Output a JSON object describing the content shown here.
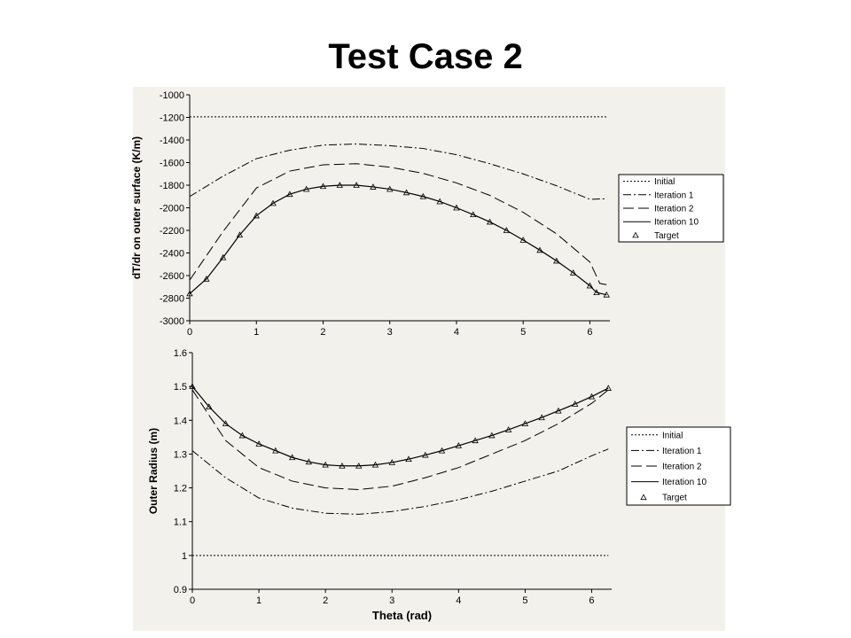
{
  "title": "Test Case 2",
  "chart_data": [
    {
      "type": "line",
      "xlabel": "",
      "ylabel": "dT/dr on outer surface (K/m)",
      "xlim": [
        0,
        6.3
      ],
      "ylim": [
        -3000,
        -1000
      ],
      "x_ticks": [
        "0",
        "1",
        "2",
        "3",
        "4",
        "5",
        "6"
      ],
      "y_ticks": [
        "-1000",
        "-1200",
        "-1400",
        "-1600",
        "-1800",
        "-2000",
        "-2200",
        "-2400",
        "-2600",
        "-2800",
        "-3000"
      ],
      "grid": false,
      "legend": "right",
      "series": [
        {
          "name": "Initial",
          "style": "dotted",
          "x": [
            0,
            6.25
          ],
          "y": [
            -1195,
            -1195
          ]
        },
        {
          "name": "Iteration 1",
          "style": "dashdot",
          "x": [
            0,
            0.5,
            1,
            1.5,
            2,
            2.5,
            3,
            3.5,
            4,
            4.5,
            5,
            5.5,
            6,
            6.25
          ],
          "y": [
            -1900,
            -1720,
            -1565,
            -1490,
            -1445,
            -1435,
            -1450,
            -1475,
            -1530,
            -1610,
            -1700,
            -1805,
            -1925,
            -1920
          ]
        },
        {
          "name": "Iteration 2",
          "style": "longdash",
          "x": [
            0,
            0.5,
            1,
            1.5,
            2,
            2.5,
            3,
            3.5,
            4,
            4.5,
            5,
            5.5,
            6,
            6.15,
            6.25
          ],
          "y": [
            -2640,
            -2210,
            -1825,
            -1675,
            -1620,
            -1610,
            -1640,
            -1695,
            -1780,
            -1890,
            -2040,
            -2230,
            -2480,
            -2670,
            -2680
          ]
        },
        {
          "name": "Iteration 10",
          "style": "solid",
          "x": [
            0,
            0.25,
            0.5,
            0.75,
            1,
            1.25,
            1.5,
            1.75,
            2,
            2.25,
            2.5,
            2.75,
            3,
            3.25,
            3.5,
            3.75,
            4,
            4.25,
            4.5,
            4.75,
            5,
            5.25,
            5.5,
            5.75,
            6,
            6.1,
            6.25
          ],
          "y": [
            -2760,
            -2630,
            -2440,
            -2240,
            -2070,
            -1960,
            -1880,
            -1835,
            -1810,
            -1800,
            -1800,
            -1815,
            -1835,
            -1865,
            -1900,
            -1945,
            -2000,
            -2060,
            -2125,
            -2200,
            -2285,
            -2375,
            -2470,
            -2575,
            -2690,
            -2750,
            -2770
          ]
        },
        {
          "name": "Target",
          "style": "triangles",
          "x": [
            0,
            0.25,
            0.5,
            0.75,
            1,
            1.25,
            1.5,
            1.75,
            2,
            2.25,
            2.5,
            2.75,
            3,
            3.25,
            3.5,
            3.75,
            4,
            4.25,
            4.5,
            4.75,
            5,
            5.25,
            5.5,
            5.75,
            6,
            6.1,
            6.25
          ],
          "y": [
            -2760,
            -2630,
            -2440,
            -2240,
            -2070,
            -1960,
            -1880,
            -1835,
            -1810,
            -1800,
            -1800,
            -1815,
            -1835,
            -1865,
            -1900,
            -1945,
            -2000,
            -2060,
            -2125,
            -2200,
            -2285,
            -2375,
            -2470,
            -2575,
            -2690,
            -2750,
            -2770
          ]
        }
      ]
    },
    {
      "type": "line",
      "xlabel": "Theta (rad)",
      "ylabel": "Outer Radius (m)",
      "xlim": [
        0,
        6.3
      ],
      "ylim": [
        0.9,
        1.6
      ],
      "x_ticks": [
        "0",
        "1",
        "2",
        "3",
        "4",
        "5",
        "6"
      ],
      "y_ticks": [
        "1.6",
        "1.5",
        "1.4",
        "1.3",
        "1.2",
        "1.1",
        "1",
        "0.9"
      ],
      "grid": false,
      "legend": "right",
      "series": [
        {
          "name": "Initial",
          "style": "dotted",
          "x": [
            0,
            6.25
          ],
          "y": [
            1.0,
            1.0
          ]
        },
        {
          "name": "Iteration 1",
          "style": "dashdot",
          "x": [
            0,
            0.5,
            1,
            1.5,
            2,
            2.5,
            3,
            3.5,
            4,
            4.5,
            5,
            5.5,
            6,
            6.25
          ],
          "y": [
            1.31,
            1.23,
            1.17,
            1.14,
            1.125,
            1.122,
            1.13,
            1.145,
            1.165,
            1.19,
            1.22,
            1.25,
            1.295,
            1.315
          ]
        },
        {
          "name": "Iteration 2",
          "style": "longdash",
          "x": [
            0,
            0.5,
            1,
            1.5,
            2,
            2.5,
            3,
            3.5,
            4,
            4.5,
            5,
            5.5,
            6,
            6.25
          ],
          "y": [
            1.49,
            1.34,
            1.26,
            1.22,
            1.2,
            1.195,
            1.205,
            1.23,
            1.26,
            1.3,
            1.34,
            1.39,
            1.45,
            1.49
          ]
        },
        {
          "name": "Iteration 10",
          "style": "solid",
          "x": [
            0,
            0.25,
            0.5,
            0.75,
            1,
            1.25,
            1.5,
            1.75,
            2,
            2.25,
            2.5,
            2.75,
            3,
            3.25,
            3.5,
            3.75,
            4,
            4.25,
            4.5,
            4.75,
            5,
            5.25,
            5.5,
            5.75,
            6,
            6.25
          ],
          "y": [
            1.5,
            1.44,
            1.39,
            1.355,
            1.33,
            1.31,
            1.29,
            1.277,
            1.268,
            1.265,
            1.265,
            1.268,
            1.275,
            1.285,
            1.297,
            1.31,
            1.325,
            1.34,
            1.355,
            1.372,
            1.39,
            1.408,
            1.428,
            1.448,
            1.47,
            1.495
          ]
        },
        {
          "name": "Target",
          "style": "triangles",
          "x": [
            0,
            0.25,
            0.5,
            0.75,
            1,
            1.25,
            1.5,
            1.75,
            2,
            2.25,
            2.5,
            2.75,
            3,
            3.25,
            3.5,
            3.75,
            4,
            4.25,
            4.5,
            4.75,
            5,
            5.25,
            5.5,
            5.75,
            6,
            6.25
          ],
          "y": [
            1.5,
            1.44,
            1.39,
            1.355,
            1.33,
            1.31,
            1.29,
            1.277,
            1.268,
            1.265,
            1.265,
            1.268,
            1.275,
            1.285,
            1.297,
            1.31,
            1.325,
            1.34,
            1.355,
            1.372,
            1.39,
            1.408,
            1.428,
            1.448,
            1.47,
            1.495
          ]
        }
      ]
    }
  ]
}
